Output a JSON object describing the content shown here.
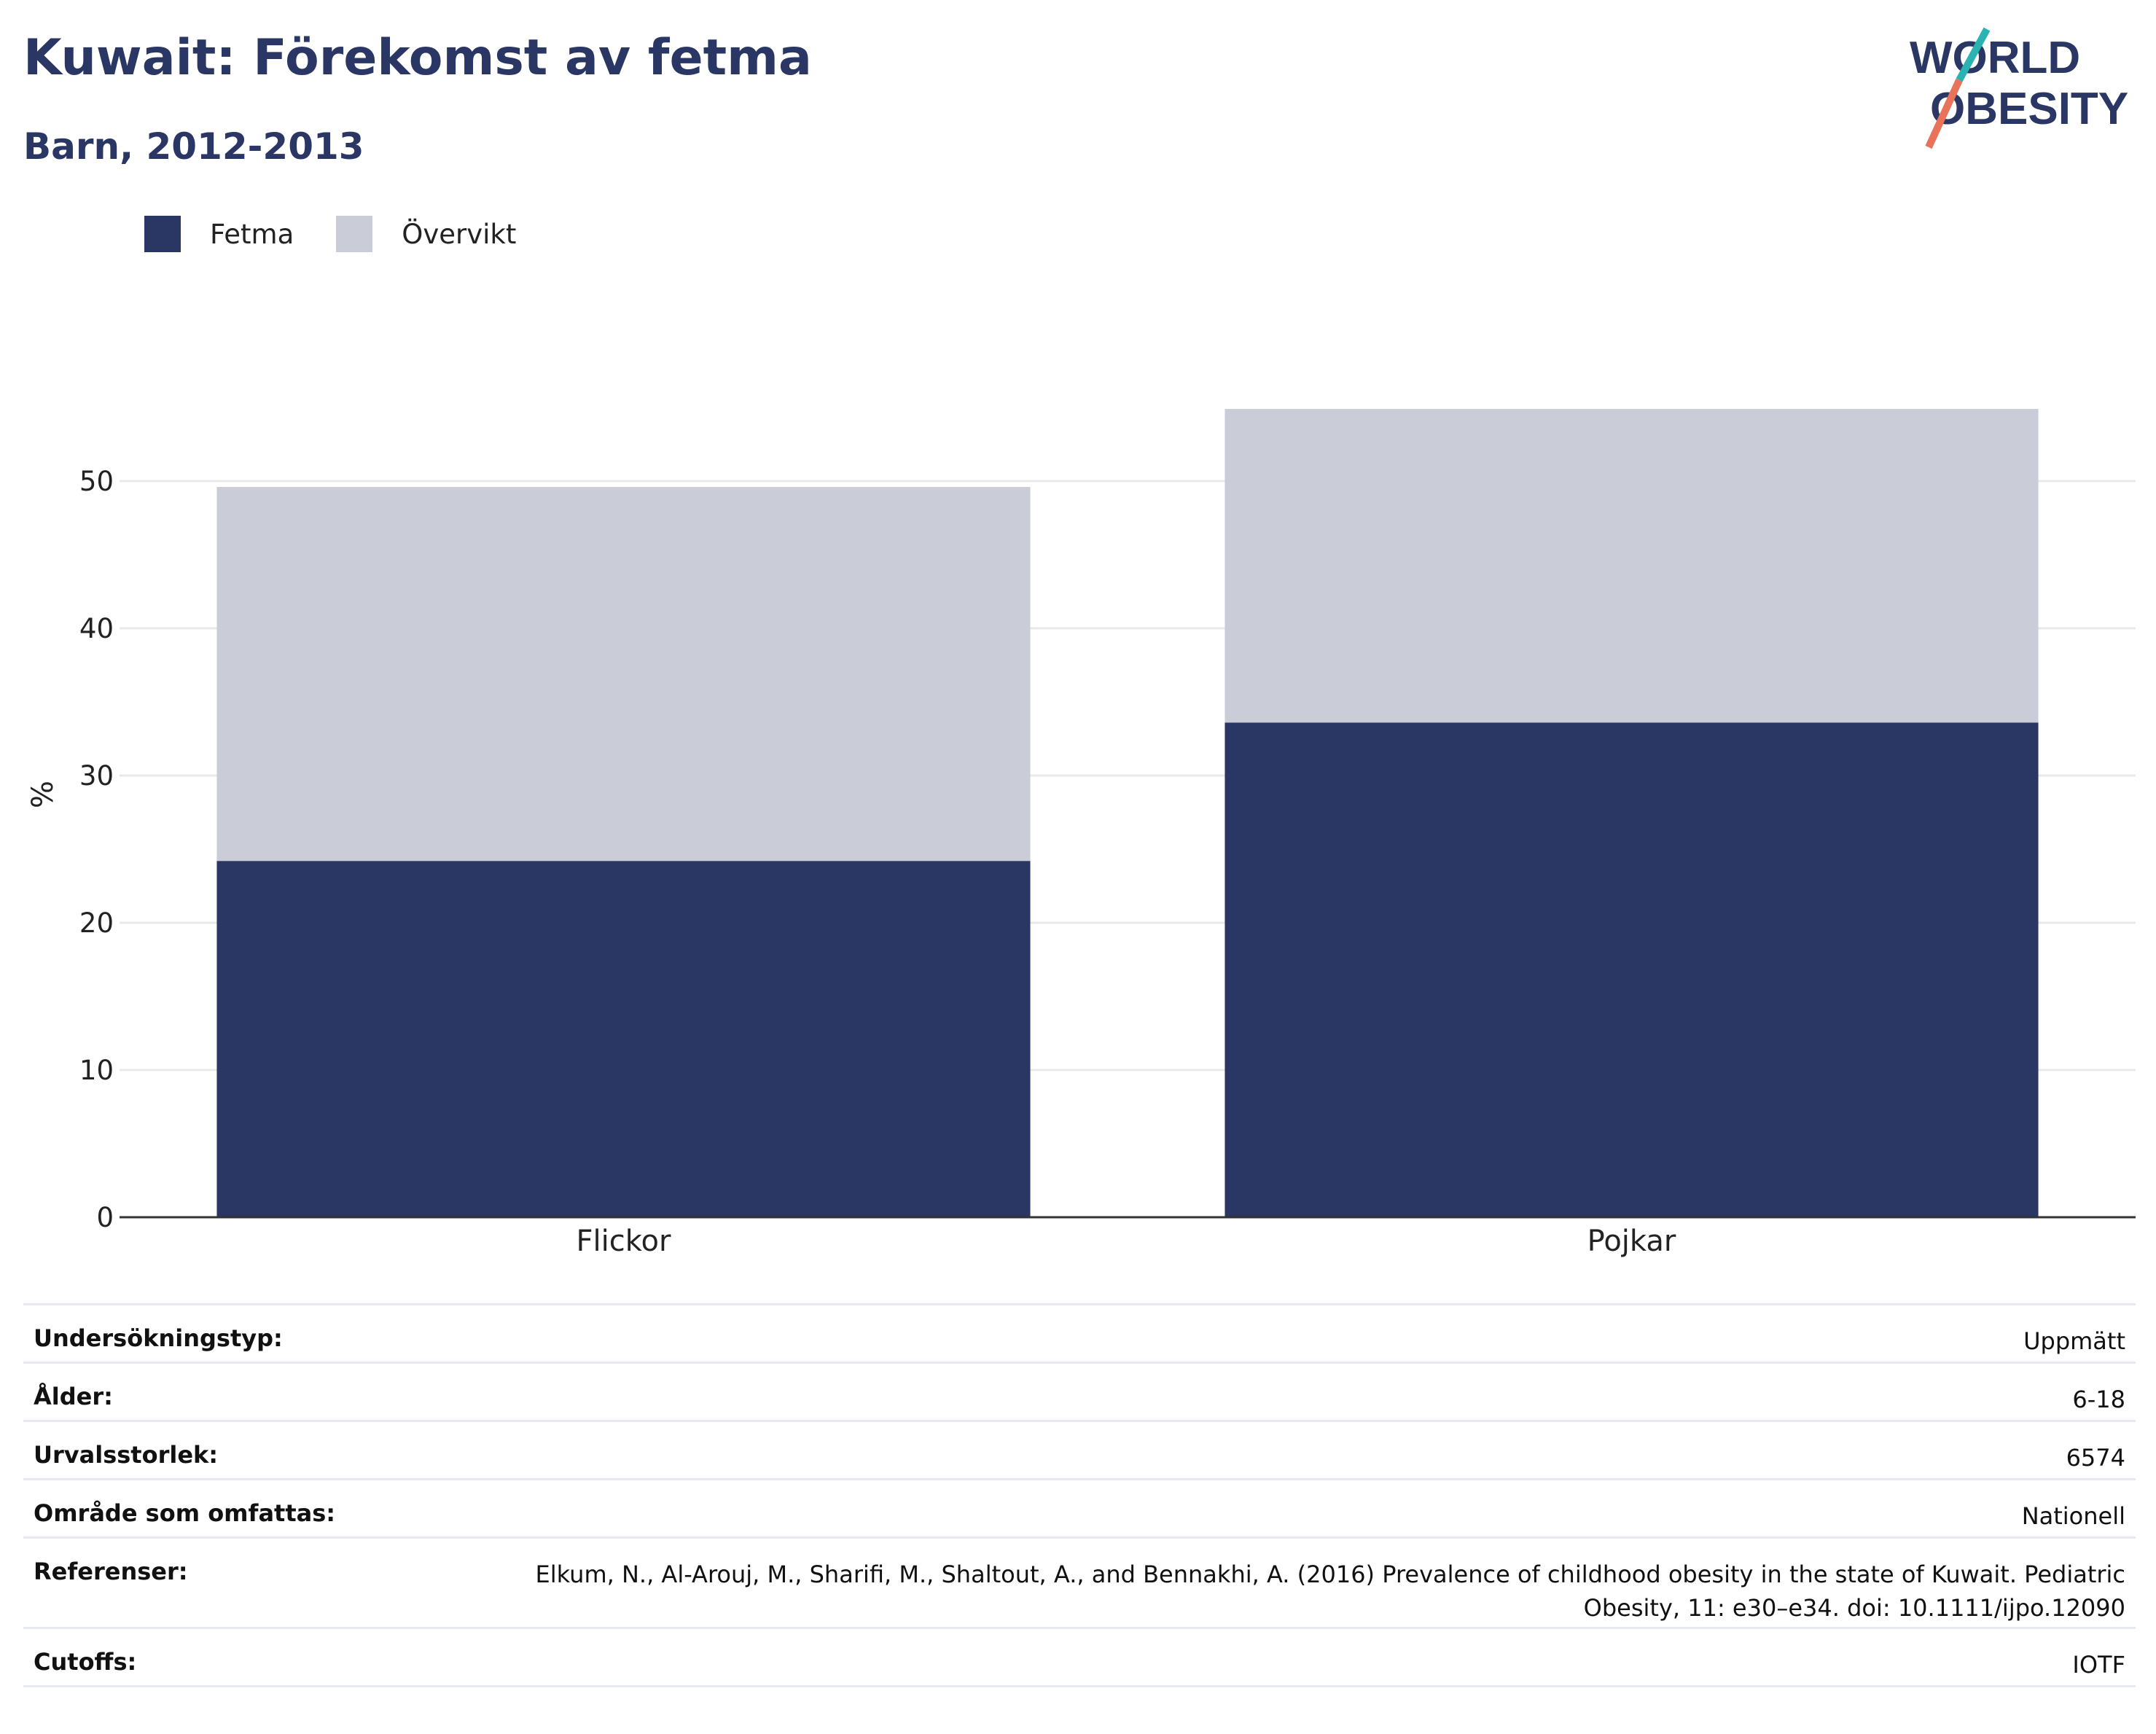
{
  "header": {
    "title": "Kuwait: Förekomst av fetma",
    "subtitle": "Barn, 2012-2013"
  },
  "logo": {
    "line1": "WORLD",
    "line2": "OBESITY"
  },
  "colors": {
    "obesity": "#2a3663",
    "overweight": "#cacdd8",
    "accent_teal": "#2ab3b0",
    "accent_coral": "#e8735a",
    "axis": "#333333",
    "grid": "#e8e8e8"
  },
  "legend": [
    {
      "label": "Fetma",
      "color": "#2a3663"
    },
    {
      "label": "Övervikt",
      "color": "#cacdd8"
    }
  ],
  "chart_data": {
    "type": "bar",
    "stacked": true,
    "categories": [
      "Flickor",
      "Pojkar"
    ],
    "series": [
      {
        "name": "Fetma",
        "values": [
          24.2,
          33.6
        ]
      },
      {
        "name": "Övervikt",
        "values": [
          25.4,
          21.3
        ]
      }
    ],
    "ylabel": "%",
    "xlabel": "",
    "ylim": [
      0,
      55
    ],
    "yticks": [
      0,
      10,
      20,
      30,
      40,
      50
    ],
    "grid": true,
    "legend_position": "top-left"
  },
  "info": [
    {
      "key": "Undersökningstyp:",
      "value": "Uppmätt"
    },
    {
      "key": "Ålder:",
      "value": "6-18"
    },
    {
      "key": "Urvalsstorlek:",
      "value": "6574"
    },
    {
      "key": "Område som omfattas:",
      "value": "Nationell"
    },
    {
      "key": "Referenser:",
      "value": "Elkum, N., Al-Arouj, M., Sharifi, M., Shaltout, A., and Bennakhi, A. (2016) Prevalence of childhood obesity in the state of Kuwait. Pediatric Obesity, 11: e30–e34. doi: 10.1111/ijpo.12090"
    },
    {
      "key": "Cutoffs:",
      "value": "IOTF"
    }
  ]
}
